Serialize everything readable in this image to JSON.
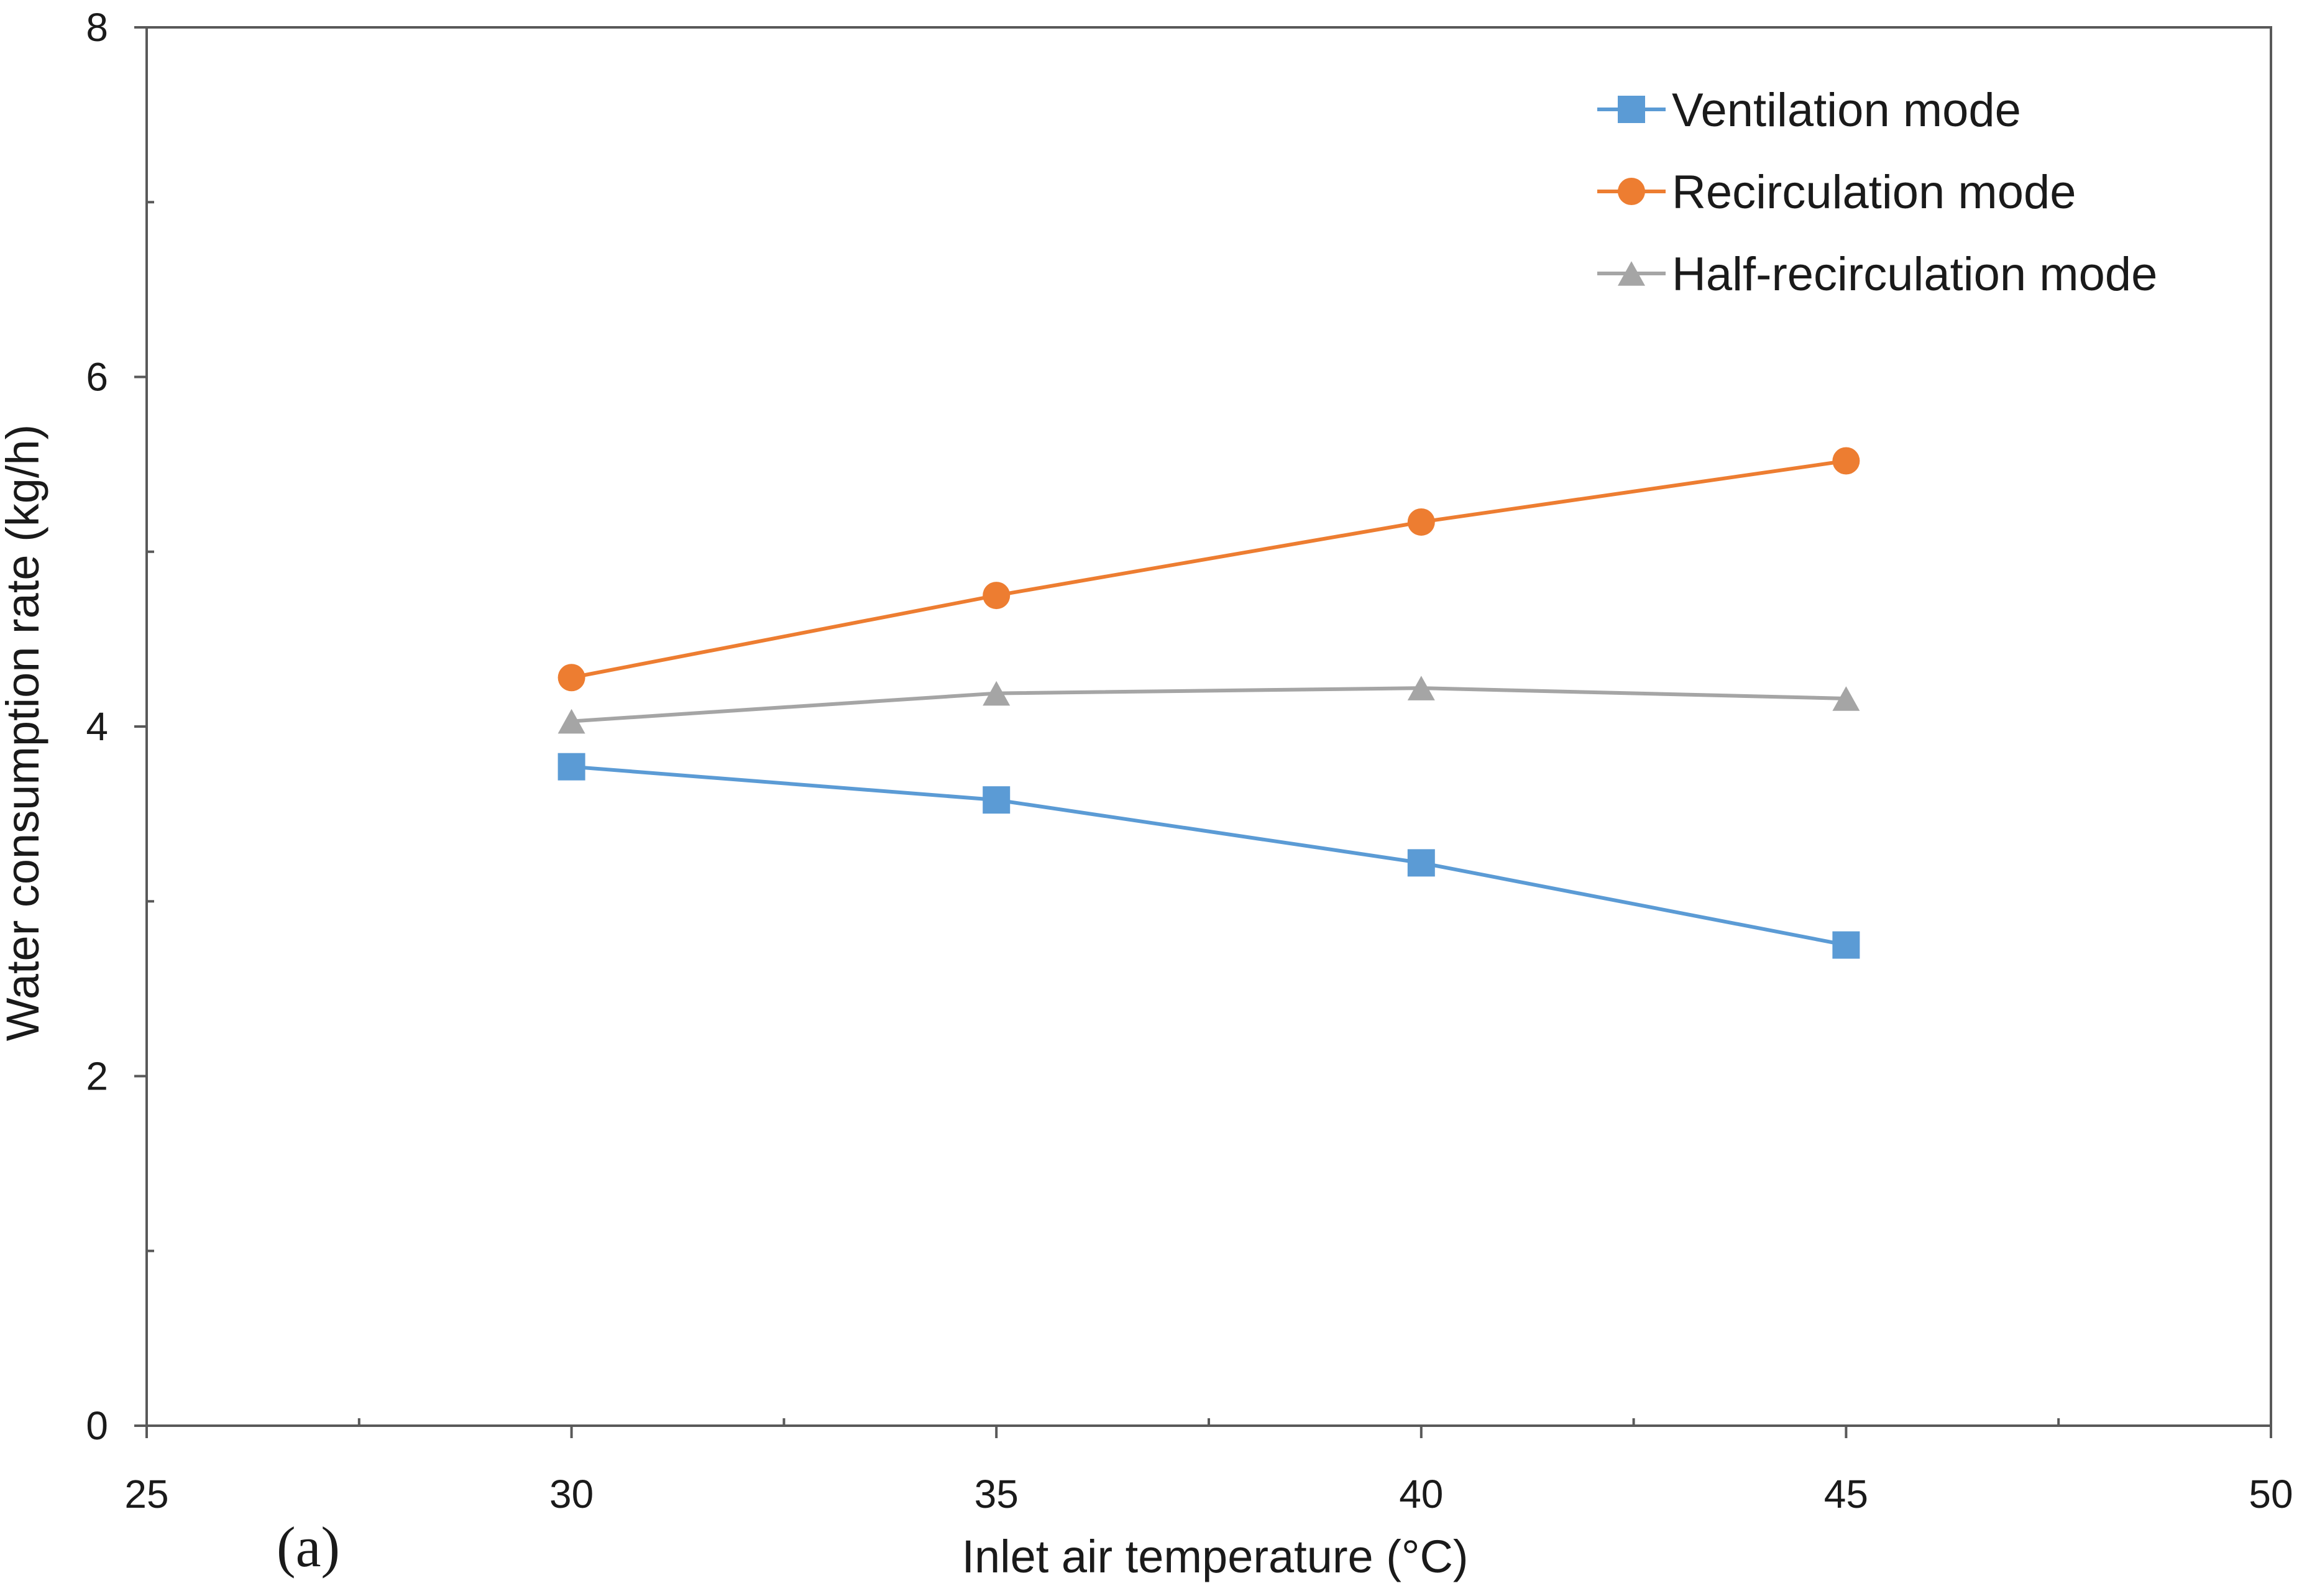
{
  "chart_data": {
    "type": "line",
    "title": "",
    "panel_label": "(a)",
    "xlabel": "Inlet air temperature (°C)",
    "ylabel": "Water consumption rate (kg/h)",
    "xlim": [
      25,
      50
    ],
    "ylim": [
      0,
      8
    ],
    "x_ticks": [
      25,
      30,
      35,
      40,
      45,
      50
    ],
    "x_tick_labels": [
      "25",
      "30",
      "35",
      "40",
      "45",
      "50"
    ],
    "x_minor_ticks": [
      27.5,
      32.5,
      37.5,
      42.5,
      47.5
    ],
    "y_ticks": [
      0,
      2,
      4,
      6,
      8
    ],
    "y_tick_labels": [
      "0",
      "2",
      "4",
      "6",
      "8"
    ],
    "y_minor_ticks": [
      1,
      3,
      5,
      7
    ],
    "grid": false,
    "legend_position": "top-right",
    "x": [
      30,
      35,
      40,
      45
    ],
    "series": [
      {
        "name": "Ventilation mode",
        "marker": "square",
        "color": "#5B9BD5",
        "values": [
          3.77,
          3.58,
          3.22,
          2.75
        ]
      },
      {
        "name": "Recirculation mode",
        "marker": "circle",
        "color": "#ED7D31",
        "values": [
          4.28,
          4.75,
          5.17,
          5.52
        ]
      },
      {
        "name": "Half-recirculation mode",
        "marker": "triangle",
        "color": "#A5A5A5",
        "values": [
          4.03,
          4.19,
          4.22,
          4.16
        ]
      }
    ]
  }
}
